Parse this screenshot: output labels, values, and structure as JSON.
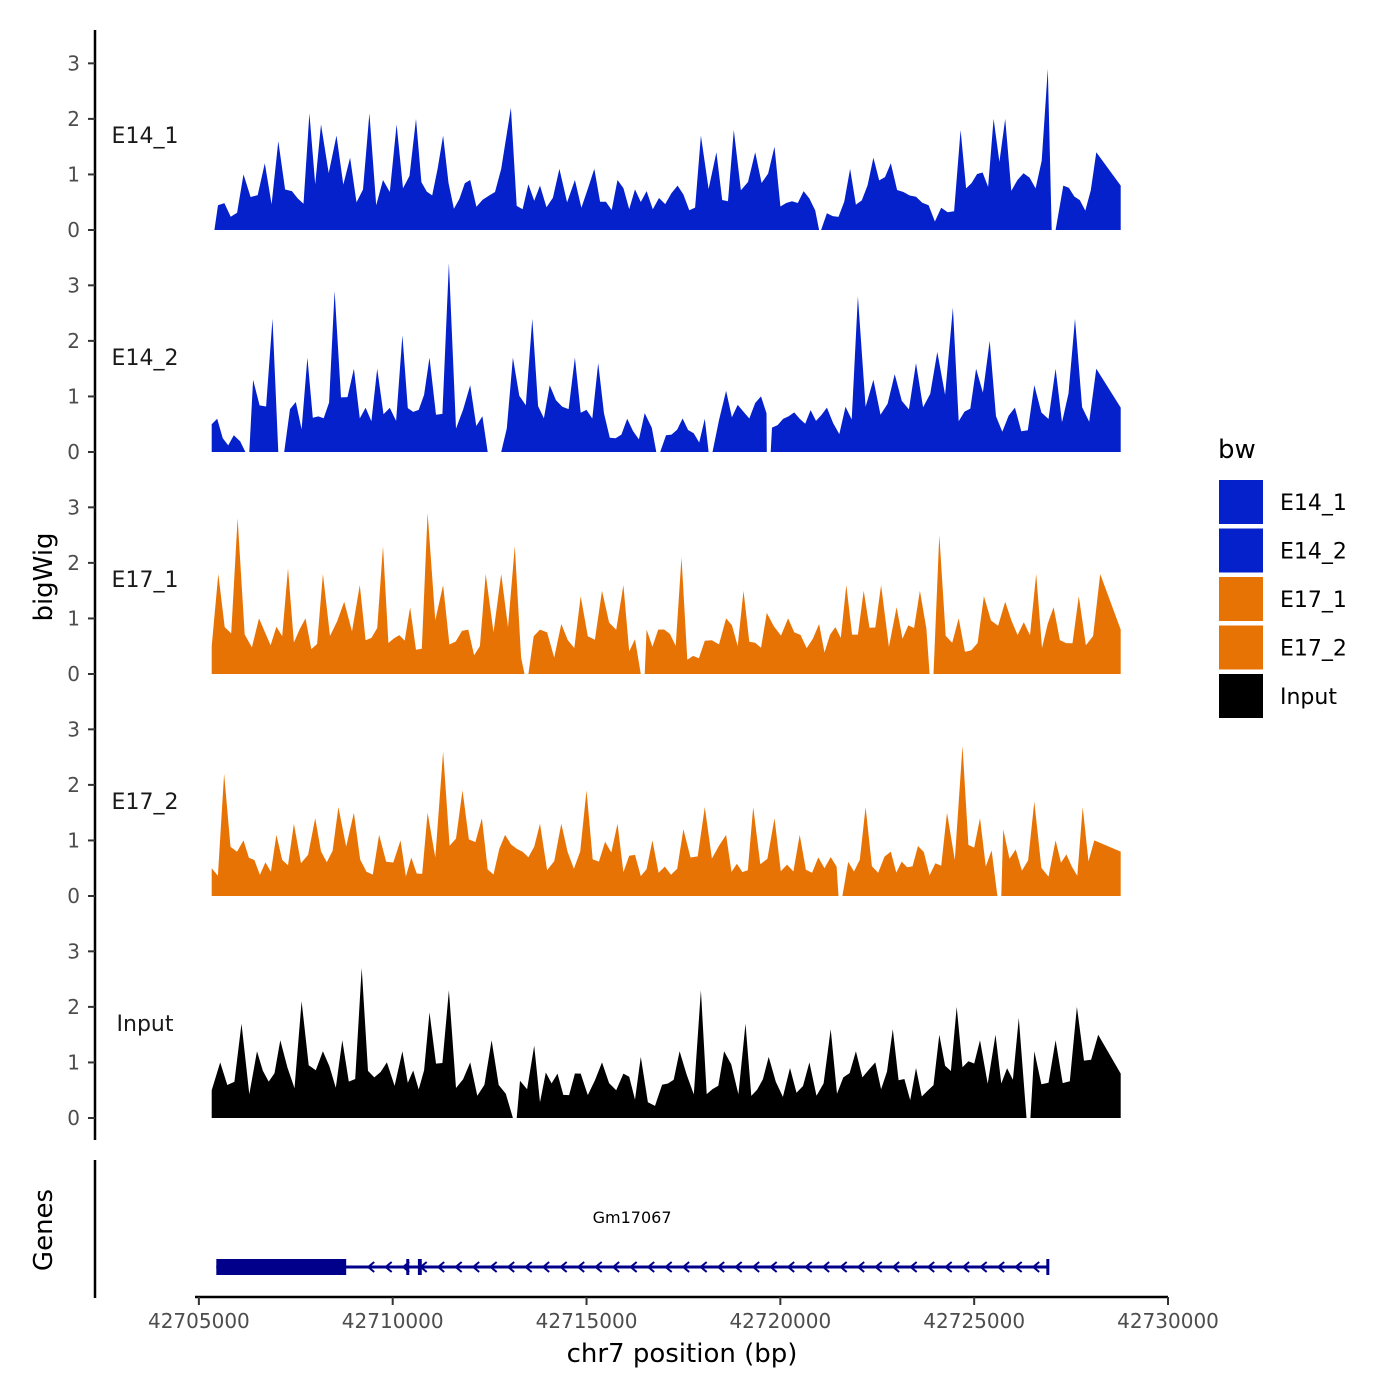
{
  "chart_data": {
    "type": "area",
    "x_axis": {
      "title": "chr7 position (bp)",
      "range": [
        42704900,
        42730000
      ],
      "ticks": [
        42705000,
        42710000,
        42715000,
        42720000,
        42725000,
        42730000
      ],
      "tick_labels": [
        "42705000",
        "42710000",
        "42715000",
        "42720000",
        "42725000",
        "42730000"
      ]
    },
    "y_axis": {
      "title": "bigWig",
      "range": [
        0,
        3.6
      ],
      "ticks": [
        0,
        1,
        2,
        3
      ],
      "tick_labels": [
        "0",
        "1",
        "2",
        "3"
      ]
    },
    "genes_axis_title": "Genes",
    "legend": {
      "title": "bw",
      "position": "right",
      "entries": [
        {
          "label": "E14_1",
          "color": "#0421CC"
        },
        {
          "label": "E14_2",
          "color": "#0421CC"
        },
        {
          "label": "E17_1",
          "color": "#E87305"
        },
        {
          "label": "E17_2",
          "color": "#E87305"
        },
        {
          "label": "Input",
          "color": "#000000"
        }
      ]
    },
    "series": [
      {
        "name": "E14_1",
        "color": "#0421CC",
        "x": [
          42706150,
          42706700,
          42707050,
          42707400,
          42707850,
          42708150,
          42708550,
          42708900,
          42709400,
          42709750,
          42710100,
          42710600,
          42711300,
          42712000,
          42712800,
          42713050,
          42713800,
          42714300,
          42714700,
          42715200,
          42715800,
          42716550,
          42717350,
          42717950,
          42718350,
          42718800,
          42719350,
          42719850,
          42720600,
          42721200,
          42721800,
          42722400,
          42722850,
          42723500,
          42724150,
          42724650,
          42725500,
          42725800,
          42726900,
          42727300,
          42728150
        ],
        "values": [
          1.0,
          1.2,
          1.6,
          0.7,
          2.1,
          1.9,
          1.7,
          1.3,
          2.1,
          0.9,
          1.9,
          2.0,
          1.7,
          0.9,
          1.1,
          2.2,
          0.8,
          1.1,
          0.9,
          1.1,
          0.9,
          0.7,
          0.8,
          1.7,
          1.4,
          1.8,
          1.4,
          1.5,
          0.7,
          0.3,
          1.1,
          1.3,
          1.2,
          0.6,
          0.4,
          1.8,
          2.0,
          2.0,
          2.9,
          0.8,
          1.4
        ],
        "gaps": [
          [
            42705150,
            42705400
          ],
          [
            42721000,
            42721050
          ],
          [
            42727000,
            42727100
          ]
        ]
      },
      {
        "name": "E14_2",
        "color": "#0421CC",
        "x": [
          42705900,
          42706400,
          42706900,
          42707500,
          42707800,
          42708500,
          42709000,
          42709600,
          42710250,
          42710950,
          42711450,
          42712000,
          42713100,
          42713600,
          42714050,
          42714700,
          42715300,
          42716050,
          42716500,
          42717050,
          42718050,
          42718600,
          42719500,
          42720500,
          42721200,
          42722000,
          42722400,
          42722950,
          42723500,
          42724050,
          42724450,
          42725050,
          42725400,
          42726050,
          42726550,
          42727100,
          42727600,
          42728150
        ],
        "values": [
          0.3,
          1.3,
          2.4,
          0.9,
          1.7,
          2.9,
          1.5,
          1.5,
          2.1,
          1.7,
          3.4,
          1.2,
          1.7,
          2.4,
          1.2,
          1.7,
          1.6,
          0.6,
          0.7,
          0.3,
          0.6,
          1.1,
          1.0,
          0.6,
          0.8,
          2.8,
          1.3,
          1.4,
          1.6,
          1.8,
          2.6,
          1.5,
          2.0,
          0.8,
          1.2,
          1.5,
          2.4,
          1.5
        ],
        "gaps": [
          [
            42706200,
            42706300
          ],
          [
            42707050,
            42707200
          ],
          [
            42712450,
            42712800
          ],
          [
            42716800,
            42716900
          ],
          [
            42718150,
            42718250
          ],
          [
            42719650,
            42719750
          ]
        ]
      },
      {
        "name": "E17_1",
        "color": "#E87305",
        "x": [
          42705500,
          42706000,
          42706550,
          42707300,
          42707750,
          42708200,
          42708750,
          42709150,
          42709750,
          42710450,
          42710900,
          42711300,
          42711950,
          42712400,
          42712800,
          42713150,
          42713800,
          42714350,
          42714850,
          42715400,
          42715950,
          42716850,
          42717450,
          42718050,
          42718600,
          42719050,
          42719650,
          42720200,
          42721000,
          42721700,
          42722150,
          42722600,
          42723000,
          42723600,
          42724100,
          42724600,
          42725250,
          42725800,
          42726600,
          42727050,
          42727700,
          42728250
        ],
        "values": [
          1.8,
          2.8,
          1.0,
          1.9,
          1.0,
          1.8,
          1.3,
          1.6,
          2.3,
          1.2,
          2.9,
          1.6,
          0.8,
          1.8,
          1.8,
          2.3,
          0.8,
          0.9,
          1.4,
          1.5,
          1.6,
          0.8,
          2.1,
          0.6,
          1.0,
          1.5,
          1.1,
          1.0,
          0.9,
          1.6,
          1.5,
          1.6,
          1.2,
          1.5,
          2.5,
          1.0,
          1.4,
          1.3,
          1.8,
          1.2,
          1.4,
          1.8
        ],
        "gaps": [
          [
            42713400,
            42713500
          ],
          [
            42716400,
            42716500
          ],
          [
            42723850,
            42723950
          ]
        ]
      },
      {
        "name": "E17_2",
        "color": "#E87305",
        "x": [
          42705650,
          42706150,
          42707000,
          42707450,
          42708000,
          42708600,
          42709000,
          42709650,
          42710200,
          42710900,
          42711300,
          42711800,
          42712300,
          42712900,
          42713800,
          42714350,
          42715000,
          42715800,
          42716700,
          42717500,
          42718050,
          42718600,
          42719300,
          42719850,
          42720500,
          42721300,
          42722200,
          42722850,
          42723550,
          42724300,
          42724700,
          42725150,
          42725750,
          42726550,
          42727100,
          42727800,
          42728100
        ],
        "values": [
          2.2,
          1.0,
          1.1,
          1.3,
          1.4,
          1.6,
          1.5,
          1.1,
          1.0,
          1.5,
          2.6,
          1.9,
          1.4,
          1.1,
          1.3,
          1.3,
          1.9,
          1.3,
          1.0,
          1.2,
          1.6,
          1.1,
          1.6,
          1.4,
          1.1,
          0.7,
          1.6,
          0.8,
          0.9,
          1.5,
          2.7,
          1.4,
          1.2,
          1.7,
          1.0,
          1.6,
          1.0
        ],
        "gaps": [
          [
            42721500,
            42721600
          ],
          [
            42725600,
            42725700
          ]
        ]
      },
      {
        "name": "Input",
        "color": "#000000",
        "x": [
          42705550,
          42706100,
          42706500,
          42707100,
          42707650,
          42708200,
          42708700,
          42709200,
          42709850,
          42710250,
          42710950,
          42711450,
          42712000,
          42712550,
          42713100,
          42713650,
          42714250,
          42714850,
          42715400,
          42715950,
          42716400,
          42716950,
          42717400,
          42717950,
          42718550,
          42719100,
          42719700,
          42720250,
          42720750,
          42721300,
          42721950,
          42722450,
          42722900,
          42723500,
          42724100,
          42724550,
          42725150,
          42725550,
          42726150,
          42726550,
          42727100,
          42727650,
          42728200
        ],
        "values": [
          1.0,
          1.7,
          1.2,
          1.4,
          2.1,
          1.2,
          1.4,
          2.7,
          1.0,
          1.2,
          1.9,
          2.3,
          1.0,
          1.4,
          1.1,
          1.3,
          0.8,
          0.8,
          1.0,
          0.8,
          1.1,
          0.6,
          1.2,
          2.3,
          1.2,
          1.7,
          1.1,
          0.9,
          1.0,
          1.6,
          1.2,
          1.0,
          1.6,
          0.9,
          1.5,
          2.0,
          1.4,
          1.5,
          1.8,
          1.2,
          1.4,
          2.0,
          1.5
        ],
        "gaps": [
          [
            42713100,
            42713200
          ],
          [
            42726350,
            42726450
          ]
        ]
      }
    ],
    "genes": [
      {
        "name": "Gm17067",
        "start": 42705450,
        "end": 42726900,
        "strand": "-",
        "thick_start": 42705450,
        "thick_end": 42708800,
        "exons": [
          [
            42710350,
            42710400
          ],
          [
            42710650,
            42710750
          ]
        ]
      }
    ]
  }
}
